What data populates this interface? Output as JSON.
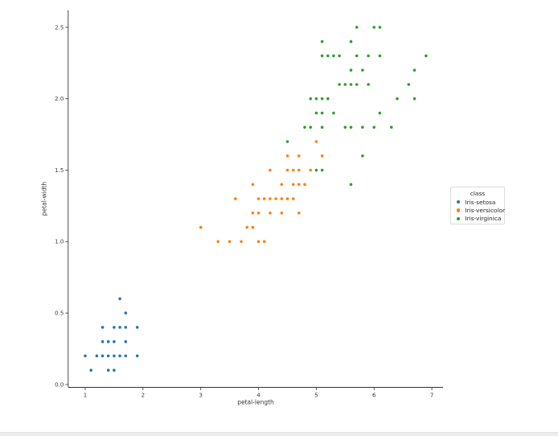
{
  "colors": {
    "background": "#ffffff",
    "spine": "#333333",
    "tick_text": "#3a3a3a",
    "legend_border": "#dcdcdc",
    "marker_edge": "#ffffff"
  },
  "chart_data": {
    "type": "scatter",
    "title": "",
    "xlabel": "petal-length",
    "ylabel": "petal-width",
    "xlim": [
      0.705,
      7.195
    ],
    "ylim": [
      -0.02,
      2.62
    ],
    "x_ticks": [
      1,
      2,
      3,
      4,
      5,
      6,
      7
    ],
    "y_ticks": [
      0.0,
      0.5,
      1.0,
      1.5,
      2.0,
      2.5
    ],
    "grid": false,
    "legend": {
      "title": "class",
      "position": "right-outside",
      "entries": [
        "Iris-setosa",
        "Iris-versicolor",
        "Iris-virginica"
      ]
    },
    "series": [
      {
        "name": "Iris-setosa",
        "color": "#1f77b4",
        "points": [
          [
            1.4,
            0.2
          ],
          [
            1.4,
            0.2
          ],
          [
            1.3,
            0.2
          ],
          [
            1.5,
            0.2
          ],
          [
            1.4,
            0.2
          ],
          [
            1.7,
            0.4
          ],
          [
            1.4,
            0.3
          ],
          [
            1.5,
            0.2
          ],
          [
            1.4,
            0.2
          ],
          [
            1.5,
            0.1
          ],
          [
            1.5,
            0.2
          ],
          [
            1.6,
            0.2
          ],
          [
            1.4,
            0.1
          ],
          [
            1.1,
            0.1
          ],
          [
            1.2,
            0.2
          ],
          [
            1.5,
            0.4
          ],
          [
            1.3,
            0.4
          ],
          [
            1.4,
            0.3
          ],
          [
            1.7,
            0.3
          ],
          [
            1.5,
            0.3
          ],
          [
            1.7,
            0.2
          ],
          [
            1.5,
            0.4
          ],
          [
            1.0,
            0.2
          ],
          [
            1.7,
            0.5
          ],
          [
            1.9,
            0.2
          ],
          [
            1.6,
            0.2
          ],
          [
            1.6,
            0.4
          ],
          [
            1.5,
            0.2
          ],
          [
            1.4,
            0.2
          ],
          [
            1.6,
            0.2
          ],
          [
            1.6,
            0.2
          ],
          [
            1.5,
            0.4
          ],
          [
            1.5,
            0.1
          ],
          [
            1.4,
            0.2
          ],
          [
            1.5,
            0.2
          ],
          [
            1.2,
            0.2
          ],
          [
            1.3,
            0.2
          ],
          [
            1.4,
            0.1
          ],
          [
            1.3,
            0.2
          ],
          [
            1.5,
            0.2
          ],
          [
            1.3,
            0.3
          ],
          [
            1.3,
            0.3
          ],
          [
            1.3,
            0.2
          ],
          [
            1.6,
            0.6
          ],
          [
            1.9,
            0.4
          ],
          [
            1.4,
            0.3
          ],
          [
            1.6,
            0.2
          ],
          [
            1.4,
            0.2
          ],
          [
            1.5,
            0.2
          ],
          [
            1.4,
            0.2
          ]
        ]
      },
      {
        "name": "Iris-versicolor",
        "color": "#ff7f0e",
        "points": [
          [
            4.7,
            1.4
          ],
          [
            4.5,
            1.5
          ],
          [
            4.9,
            1.5
          ],
          [
            4.0,
            1.3
          ],
          [
            4.6,
            1.5
          ],
          [
            4.5,
            1.3
          ],
          [
            4.7,
            1.6
          ],
          [
            3.3,
            1.0
          ],
          [
            4.6,
            1.3
          ],
          [
            3.9,
            1.4
          ],
          [
            3.5,
            1.0
          ],
          [
            4.2,
            1.5
          ],
          [
            4.0,
            1.0
          ],
          [
            4.7,
            1.4
          ],
          [
            3.6,
            1.3
          ],
          [
            4.4,
            1.4
          ],
          [
            4.5,
            1.5
          ],
          [
            4.1,
            1.0
          ],
          [
            4.5,
            1.5
          ],
          [
            3.9,
            1.1
          ],
          [
            4.8,
            1.8
          ],
          [
            4.0,
            1.3
          ],
          [
            4.9,
            1.5
          ],
          [
            4.7,
            1.2
          ],
          [
            4.3,
            1.3
          ],
          [
            4.4,
            1.4
          ],
          [
            4.8,
            1.4
          ],
          [
            5.0,
            1.7
          ],
          [
            4.5,
            1.5
          ],
          [
            3.5,
            1.0
          ],
          [
            3.8,
            1.1
          ],
          [
            3.7,
            1.0
          ],
          [
            3.9,
            1.2
          ],
          [
            5.1,
            1.6
          ],
          [
            4.5,
            1.5
          ],
          [
            4.5,
            1.6
          ],
          [
            4.7,
            1.5
          ],
          [
            4.4,
            1.3
          ],
          [
            4.1,
            1.3
          ],
          [
            4.0,
            1.3
          ],
          [
            4.4,
            1.2
          ],
          [
            4.6,
            1.4
          ],
          [
            4.0,
            1.2
          ],
          [
            3.3,
            1.0
          ],
          [
            4.2,
            1.3
          ],
          [
            4.2,
            1.2
          ],
          [
            4.2,
            1.3
          ],
          [
            4.3,
            1.3
          ],
          [
            3.0,
            1.1
          ],
          [
            4.1,
            1.3
          ]
        ]
      },
      {
        "name": "Iris-virginica",
        "color": "#2ca02c",
        "points": [
          [
            6.0,
            2.5
          ],
          [
            5.1,
            1.9
          ],
          [
            5.9,
            2.1
          ],
          [
            5.6,
            1.8
          ],
          [
            5.8,
            2.2
          ],
          [
            6.6,
            2.1
          ],
          [
            4.5,
            1.7
          ],
          [
            6.3,
            1.8
          ],
          [
            5.8,
            1.8
          ],
          [
            6.1,
            2.5
          ],
          [
            5.1,
            2.0
          ],
          [
            5.3,
            1.9
          ],
          [
            5.5,
            2.1
          ],
          [
            5.0,
            2.0
          ],
          [
            5.1,
            2.4
          ],
          [
            5.3,
            2.3
          ],
          [
            5.5,
            1.8
          ],
          [
            6.7,
            2.2
          ],
          [
            6.9,
            2.3
          ],
          [
            5.0,
            1.5
          ],
          [
            5.7,
            2.3
          ],
          [
            4.9,
            2.0
          ],
          [
            6.7,
            2.0
          ],
          [
            4.9,
            1.8
          ],
          [
            5.7,
            2.1
          ],
          [
            6.0,
            1.8
          ],
          [
            4.8,
            1.8
          ],
          [
            4.9,
            1.8
          ],
          [
            5.6,
            2.1
          ],
          [
            5.8,
            1.6
          ],
          [
            6.1,
            1.9
          ],
          [
            6.4,
            2.0
          ],
          [
            5.6,
            2.2
          ],
          [
            5.1,
            1.5
          ],
          [
            5.6,
            1.4
          ],
          [
            6.1,
            2.3
          ],
          [
            5.6,
            2.4
          ],
          [
            5.5,
            1.8
          ],
          [
            4.8,
            1.8
          ],
          [
            5.4,
            2.1
          ],
          [
            5.6,
            2.4
          ],
          [
            5.1,
            2.3
          ],
          [
            5.1,
            1.9
          ],
          [
            5.9,
            2.3
          ],
          [
            5.7,
            2.5
          ],
          [
            5.2,
            2.3
          ],
          [
            5.0,
            1.9
          ],
          [
            5.2,
            2.0
          ],
          [
            5.4,
            2.3
          ],
          [
            5.1,
            1.8
          ]
        ]
      }
    ]
  }
}
